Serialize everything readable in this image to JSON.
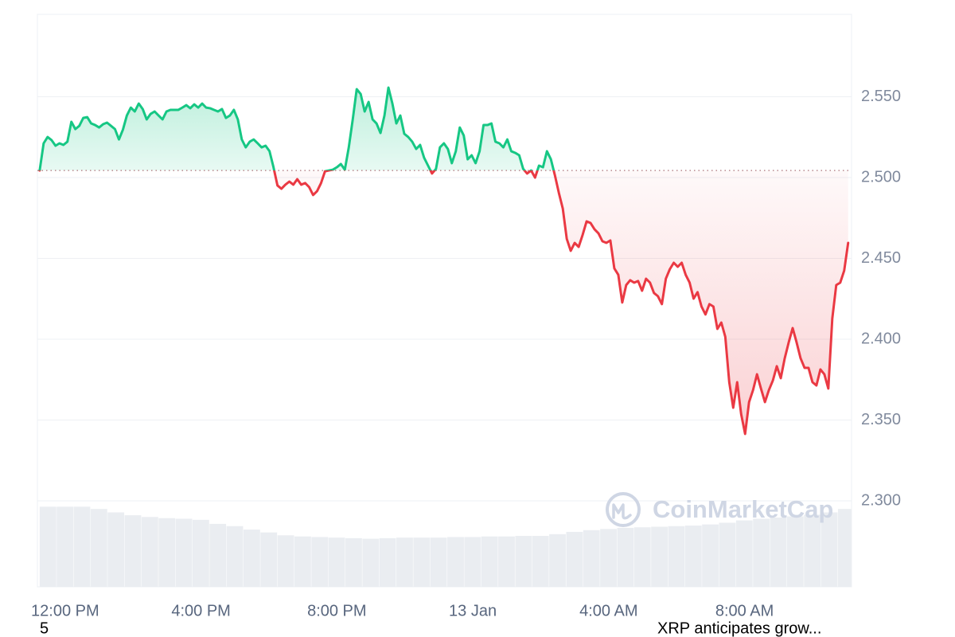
{
  "chart_data": {
    "type": "line",
    "x": [
      675,
      682,
      689,
      696,
      703,
      710,
      717,
      724,
      731,
      738,
      745,
      752,
      759,
      766,
      773,
      780,
      787,
      794,
      801,
      808,
      815,
      822,
      829,
      836,
      843,
      850,
      857,
      864,
      871,
      878,
      885,
      892,
      899,
      906,
      913,
      920,
      927,
      934,
      941,
      948,
      955,
      962,
      969,
      976,
      983,
      990,
      997,
      1004,
      1011,
      1018,
      1025,
      1032,
      1039,
      1046,
      1053,
      1060,
      1067,
      1074,
      1081,
      1088,
      1095,
      1102,
      1109,
      1116,
      1123,
      1130,
      1137,
      1144,
      1151,
      1158,
      1165,
      1172,
      1179,
      1186,
      1193,
      1200,
      1207,
      1214,
      1221,
      1228,
      1235,
      1242,
      1249,
      1256,
      1263,
      1270,
      1277,
      1284,
      1291,
      1298,
      1305,
      1312,
      1319,
      1326,
      1333,
      1340,
      1347,
      1354,
      1361,
      1368,
      1375,
      1382,
      1389,
      1396,
      1403,
      1410,
      1417,
      1424,
      1431,
      1438,
      1445,
      1452,
      1459,
      1466,
      1473,
      1480,
      1487,
      1494,
      1501,
      1508,
      1515,
      1522,
      1529,
      1536,
      1543,
      1550,
      1557,
      1564,
      1571,
      1578,
      1585,
      1592,
      1599,
      1606,
      1613,
      1620,
      1627,
      1634,
      1641,
      1648,
      1655,
      1662,
      1669,
      1676,
      1683,
      1690,
      1697,
      1704,
      1711,
      1718,
      1725,
      1732,
      1739,
      1746,
      1753,
      1760,
      1767,
      1774,
      1781,
      1788,
      1795,
      1802,
      1809,
      1816,
      1823,
      1830,
      1837,
      1844,
      1851,
      1858,
      1865,
      1872,
      1879,
      1886,
      1893,
      1900,
      1907,
      1914,
      1921,
      1928,
      1935,
      1942,
      1949,
      1956,
      1963,
      1970,
      1977,
      1984,
      1991,
      1998,
      2005,
      2012,
      2019,
      2026,
      2033,
      2040,
      2047,
      2054,
      2061,
      2068,
      2075,
      2082,
      2089,
      2096,
      2103
    ],
    "values": [
      2.5044,
      2.5212,
      2.5251,
      2.5232,
      2.5197,
      2.5212,
      2.5202,
      2.5222,
      2.5345,
      2.53,
      2.532,
      2.5369,
      2.5374,
      2.5335,
      2.5325,
      2.531,
      2.533,
      2.534,
      2.532,
      2.53,
      2.5236,
      2.5296,
      2.5384,
      2.5433,
      2.5409,
      2.5458,
      2.5424,
      2.536,
      2.5394,
      2.5409,
      2.5384,
      2.536,
      2.5409,
      2.5419,
      2.5419,
      2.5419,
      2.5433,
      2.5448,
      2.5429,
      2.5453,
      2.5433,
      2.5458,
      2.5433,
      2.5429,
      2.5419,
      2.5409,
      2.5424,
      2.5369,
      2.5384,
      2.5419,
      2.536,
      2.5236,
      2.5187,
      2.5222,
      2.5236,
      2.5212,
      2.5187,
      2.5197,
      2.5163,
      2.5064,
      2.4951,
      2.4931,
      2.4956,
      2.4975,
      2.4956,
      2.499,
      2.4956,
      2.4966,
      2.4941,
      2.4892,
      2.4916,
      2.4966,
      2.5039,
      2.5044,
      2.5049,
      2.5064,
      2.5084,
      2.5049,
      2.5187,
      2.536,
      2.5547,
      2.5517,
      2.5409,
      2.5468,
      2.536,
      2.5335,
      2.5276,
      2.5384,
      2.5557,
      2.5458,
      2.5335,
      2.5384,
      2.5271,
      2.5251,
      2.5222,
      2.5177,
      2.5202,
      2.5123,
      2.5074,
      2.5025,
      2.5054,
      2.5187,
      2.5212,
      2.5177,
      2.5089,
      2.5163,
      2.531,
      2.5261,
      2.5113,
      2.5138,
      2.5089,
      2.5163,
      2.5325,
      2.5325,
      2.5335,
      2.5222,
      2.5212,
      2.5187,
      2.5236,
      2.5163,
      2.5153,
      2.5138,
      2.5054,
      2.5025,
      2.5044,
      2.5,
      2.5074,
      2.5064,
      2.5163,
      2.5113,
      2.5015,
      2.4906,
      2.4808,
      2.4621,
      2.4547,
      2.4596,
      2.4571,
      2.4645,
      2.4729,
      2.4719,
      2.468,
      2.4655,
      2.4606,
      2.4596,
      2.4611,
      2.4438,
      2.4399,
      2.4227,
      2.4335,
      2.4365,
      2.435,
      2.436,
      2.43,
      2.4374,
      2.435,
      2.4286,
      2.4266,
      2.4217,
      2.4374,
      2.4433,
      2.4473,
      2.4448,
      2.4473,
      2.4399,
      2.435,
      2.4251,
      2.4291,
      2.4202,
      2.4153,
      2.4217,
      2.4202,
      2.4064,
      2.4103,
      2.4015,
      2.3734,
      2.3576,
      2.3734,
      2.3537,
      2.3414,
      2.3611,
      2.3685,
      2.3783,
      2.3695,
      2.3611,
      2.3685,
      2.3744,
      2.3833,
      2.3759,
      2.3882,
      2.398,
      2.4069,
      2.398,
      2.3882,
      2.3823,
      2.3823,
      2.3734,
      2.3714,
      2.3813,
      2.3783,
      2.3695,
      2.4128,
      2.4335,
      2.435,
      2.4424,
      2.4596
    ],
    "baseline": 2.5044,
    "up_color": "#16c784",
    "down_color": "#ea3943",
    "xlim": [
      671,
      2109
    ],
    "xticks": [
      {
        "value": 720,
        "label": "12:00 PM"
      },
      {
        "value": 960,
        "label": "4:00 PM"
      },
      {
        "value": 1200,
        "label": "8:00 PM"
      },
      {
        "value": 1440,
        "label": "13 Jan"
      },
      {
        "value": 1680,
        "label": "4:00 AM"
      },
      {
        "value": 1920,
        "label": "8:00 AM"
      }
    ],
    "ylim": [
      2.2468,
      2.601
    ],
    "yticks": [
      {
        "value": 2.3,
        "label": "2.300"
      },
      {
        "value": 2.35,
        "label": "2.350"
      },
      {
        "value": 2.4,
        "label": "2.400"
      },
      {
        "value": 2.45,
        "label": "2.450"
      },
      {
        "value": 2.5,
        "label": "2.500"
      },
      {
        "value": 2.55,
        "label": "2.550"
      }
    ],
    "grid": true,
    "volume": {
      "x": [
        675,
        705,
        735,
        765,
        795,
        825,
        855,
        885,
        915,
        945,
        975,
        1005,
        1035,
        1065,
        1095,
        1125,
        1155,
        1185,
        1215,
        1245,
        1275,
        1305,
        1335,
        1365,
        1395,
        1425,
        1455,
        1485,
        1515,
        1545,
        1575,
        1605,
        1635,
        1665,
        1695,
        1725,
        1755,
        1785,
        1815,
        1845,
        1875,
        1905,
        1935,
        1965,
        1995,
        2025,
        2055,
        2085
      ],
      "values": [
        14.0,
        14.0,
        14.0,
        13.6,
        13.0,
        12.5,
        12.2,
        12.0,
        11.9,
        11.7,
        11.0,
        10.6,
        10.0,
        9.5,
        9.0,
        8.8,
        8.7,
        8.6,
        8.5,
        8.4,
        8.5,
        8.6,
        8.6,
        8.6,
        8.7,
        8.7,
        8.8,
        8.8,
        8.9,
        8.9,
        9.2,
        9.6,
        9.9,
        10.1,
        10.3,
        10.4,
        10.5,
        10.6,
        10.7,
        10.9,
        11.2,
        11.6,
        11.9,
        12.1,
        12.3,
        12.6,
        13.0,
        13.6
      ],
      "width": 30,
      "color": "#eaedf1"
    },
    "y2lim": [
      0,
      100
    ],
    "watermark": "CoinMarketCap"
  },
  "footer": {
    "left": "5",
    "right": "XRP anticipates grow..."
  }
}
